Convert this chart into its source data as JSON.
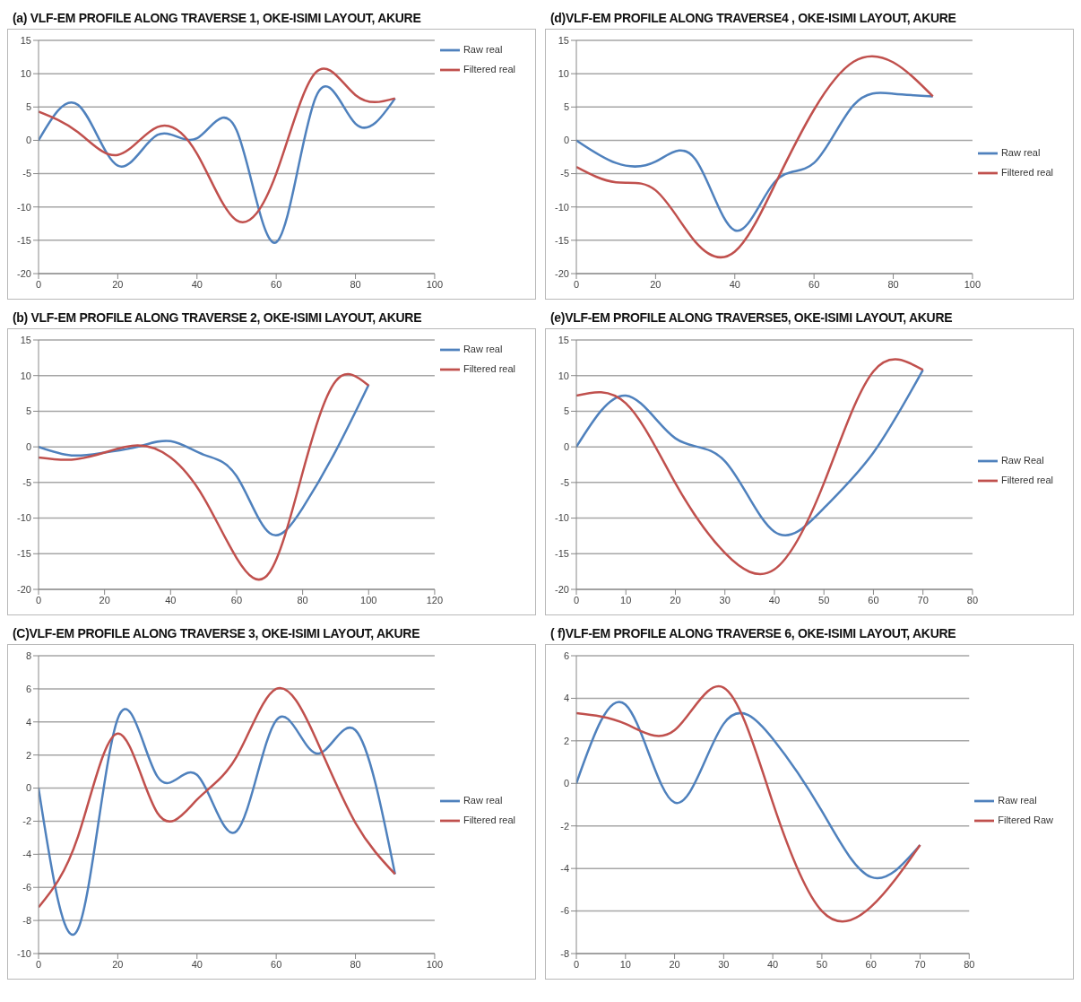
{
  "chart_data": [
    {
      "type": "line",
      "title": "(a) VLF-EM PROFILE ALONG TRAVERSE 1, OKE-ISIMI LAYOUT, AKURE",
      "x": [
        0,
        10,
        20,
        30,
        40,
        50,
        60,
        70,
        80,
        90
      ],
      "xlim": [
        0,
        100
      ],
      "xticks": [
        0,
        20,
        40,
        60,
        80,
        100
      ],
      "ylim": [
        -20,
        15
      ],
      "yticks": [
        -20,
        -15,
        -10,
        -5,
        0,
        5,
        10,
        15
      ],
      "grid": "y",
      "legend": "top right",
      "marker": "none",
      "line_style": "solid",
      "series": [
        {
          "name": "Raw real",
          "color": "#4f81bd",
          "values": [
            0,
            5.3,
            -3.8,
            0.8,
            0.3,
            1.5,
            -15.3,
            6.5,
            2.5,
            6.3
          ]
        },
        {
          "name": "Filtered real",
          "color": "#c0504d",
          "values": [
            4.3,
            1.2,
            -2.2,
            2.0,
            -2.0,
            -12.0,
            -5.0,
            10.2,
            6.8,
            6.3
          ]
        }
      ]
    },
    {
      "type": "line",
      "title": "(d)VLF-EM PROFILE ALONG TRAVERSE4 , OKE-ISIMI LAYOUT, AKURE",
      "x": [
        0,
        10,
        20,
        30,
        40,
        50,
        60,
        70,
        80,
        90
      ],
      "xlim": [
        0,
        100
      ],
      "xticks": [
        0,
        20,
        40,
        60,
        80,
        100
      ],
      "ylim": [
        -20,
        15
      ],
      "yticks": [
        -20,
        -15,
        -10,
        -5,
        0,
        5,
        10,
        15
      ],
      "grid": "y",
      "legend": "right",
      "marker": "none",
      "line_style": "solid",
      "series": [
        {
          "name": "Raw real",
          "color": "#4f81bd",
          "values": [
            0,
            -3.4,
            -3.2,
            -2.8,
            -13.5,
            -6.3,
            -3.4,
            5.3,
            7.0,
            6.6
          ]
        },
        {
          "name": "Filtered real",
          "color": "#c0504d",
          "values": [
            -4.0,
            -6.3,
            -7.5,
            -15.2,
            -16.7,
            -6.8,
            4.6,
            11.8,
            11.7,
            6.6
          ]
        }
      ]
    },
    {
      "type": "line",
      "title": "(b) VLF-EM PROFILE ALONG TRAVERSE 2, OKE-ISIMI LAYOUT, AKURE",
      "x": [
        0,
        10,
        20,
        30,
        40,
        50,
        60,
        70,
        80,
        90,
        100
      ],
      "xlim": [
        0,
        120
      ],
      "xticks": [
        0,
        20,
        40,
        60,
        80,
        100,
        120
      ],
      "ylim": [
        -20,
        15
      ],
      "yticks": [
        -20,
        -15,
        -10,
        -5,
        0,
        5,
        10,
        15
      ],
      "grid": "y",
      "legend": "top right",
      "marker": "none",
      "line_style": "solid",
      "series": [
        {
          "name": "Raw real",
          "color": "#4f81bd",
          "values": [
            0,
            -1.2,
            -0.8,
            0,
            0.8,
            -1.1,
            -4.1,
            -12.1,
            -8.6,
            -0.6,
            8.7
          ]
        },
        {
          "name": "Filtered real",
          "color": "#c0504d",
          "values": [
            -1.5,
            -1.8,
            -0.8,
            0.2,
            -1.5,
            -7.1,
            -15.6,
            -17.6,
            -3.6,
            9.2,
            8.6
          ]
        }
      ]
    },
    {
      "type": "line",
      "title": "(e)VLF-EM PROFILE ALONG TRAVERSE5, OKE-ISIMI LAYOUT, AKURE",
      "x": [
        0,
        10,
        20,
        30,
        40,
        50,
        60,
        70
      ],
      "xlim": [
        0,
        80
      ],
      "xticks": [
        0,
        10,
        20,
        30,
        40,
        50,
        60,
        70,
        80
      ],
      "ylim": [
        -20,
        15
      ],
      "yticks": [
        -20,
        -15,
        -10,
        -5,
        0,
        5,
        10,
        15
      ],
      "grid": "y",
      "legend": "right",
      "marker": "none",
      "line_style": "solid",
      "series": [
        {
          "name": "Raw Real",
          "color": "#4f81bd",
          "values": [
            0,
            7.2,
            1.2,
            -2.0,
            -11.9,
            -8.6,
            -0.8,
            10.8
          ]
        },
        {
          "name": "Filtered real",
          "color": "#c0504d",
          "values": [
            7.2,
            6.1,
            -5.1,
            -14.9,
            -17.2,
            -5.1,
            10.6,
            10.8
          ]
        }
      ]
    },
    {
      "type": "line",
      "title": "(C)VLF-EM PROFILE ALONG TRAVERSE 3, OKE-ISIMI LAYOUT, AKURE",
      "x": [
        0,
        10,
        20,
        30,
        40,
        50,
        60,
        70,
        80,
        90
      ],
      "xlim": [
        0,
        100
      ],
      "xticks": [
        0,
        20,
        40,
        60,
        80,
        100
      ],
      "ylim": [
        -10,
        8
      ],
      "yticks": [
        -10,
        -8,
        -6,
        -4,
        -2,
        0,
        2,
        4,
        6,
        8
      ],
      "grid": "y",
      "legend": "right",
      "marker": "none",
      "line_style": "solid",
      "series": [
        {
          "name": "Raw real",
          "color": "#4f81bd",
          "values": [
            0,
            -8.5,
            4.2,
            0.7,
            0.8,
            -2.6,
            4.1,
            2.1,
            3.5,
            -5.2
          ]
        },
        {
          "name": "Filtered real",
          "color": "#c0504d",
          "values": [
            -7.2,
            -2.9,
            3.3,
            -1.5,
            -0.7,
            1.9,
            6.0,
            3.0,
            -2.1,
            -5.2
          ]
        }
      ]
    },
    {
      "type": "line",
      "title": "( f)VLF-EM PROFILE ALONG TRAVERSE 6, OKE-ISIMI LAYOUT, AKURE",
      "x": [
        0,
        10,
        20,
        30,
        40,
        50,
        60,
        70
      ],
      "xlim": [
        0,
        80
      ],
      "xticks": [
        0,
        10,
        20,
        30,
        40,
        50,
        60,
        70,
        80
      ],
      "ylim": [
        -8,
        6
      ],
      "yticks": [
        -8,
        -6,
        -4,
        -2,
        0,
        2,
        4,
        6
      ],
      "grid": "y",
      "legend": "right",
      "marker": "none",
      "line_style": "solid",
      "series": [
        {
          "name": "Raw real",
          "color": "#4f81bd",
          "values": [
            0,
            3.7,
            -0.9,
            2.8,
            2.1,
            -1.3,
            -4.4,
            -2.9
          ]
        },
        {
          "name": "Filtered Raw",
          "color": "#c0504d",
          "values": [
            3.3,
            2.8,
            2.5,
            4.5,
            -0.9,
            -6.0,
            -5.8,
            -2.9
          ]
        }
      ]
    }
  ]
}
